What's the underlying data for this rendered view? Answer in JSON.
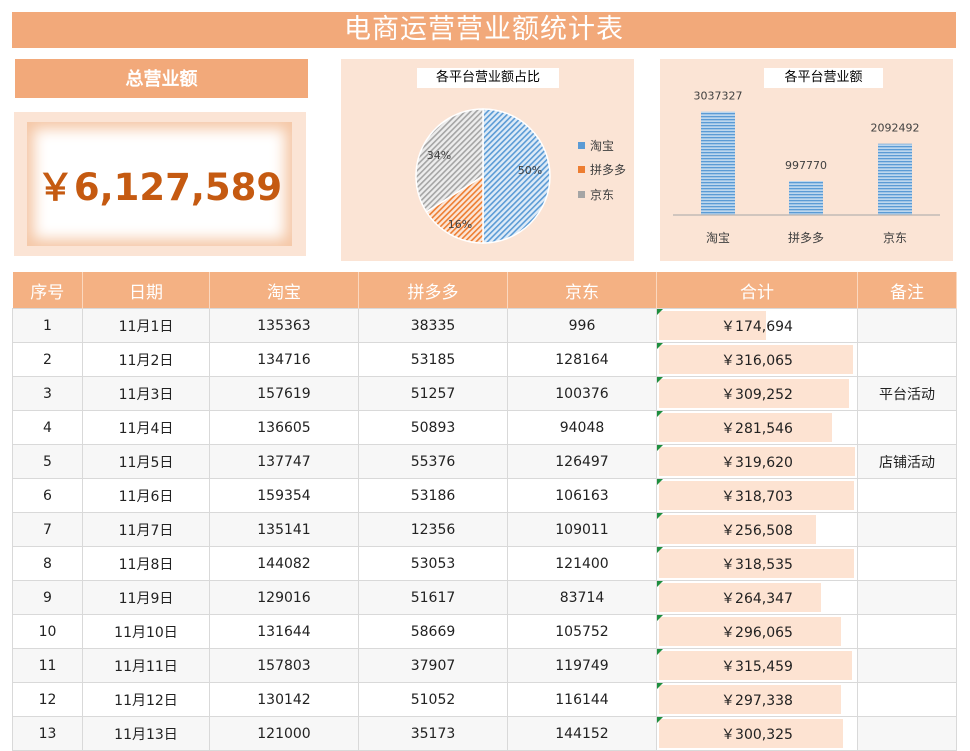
{
  "title": "电商运营营业额统计表",
  "kpi": {
    "label": "总营业额",
    "value": "￥6,127,589"
  },
  "pie_chart": {
    "title": "各平台营业额占比",
    "legend": [
      "淘宝",
      "拼多多",
      "京东"
    ],
    "slice_labels": [
      "50%",
      "16%",
      "34%"
    ]
  },
  "bar_chart": {
    "title": "各平台营业额",
    "value_labels": [
      "3037327",
      "997770",
      "2092492"
    ]
  },
  "chart_data": [
    {
      "type": "pie",
      "title": "各平台营业额占比",
      "categories": [
        "淘宝",
        "拼多多",
        "京东"
      ],
      "values": [
        50,
        16,
        34
      ],
      "colors": [
        "#5b9bd5",
        "#ed7d31",
        "#a5a5a5"
      ],
      "legend": "right"
    },
    {
      "type": "bar",
      "title": "各平台营业额",
      "categories": [
        "淘宝",
        "拼多多",
        "京东"
      ],
      "values": [
        3037327,
        997770,
        2092492
      ],
      "ylim": [
        0,
        3200000
      ],
      "color": "#5b9bd5",
      "grid": false
    }
  ],
  "table": {
    "headers": [
      "序号",
      "日期",
      "淘宝",
      "拼多多",
      "京东",
      "合计",
      "备注"
    ],
    "max_total": 319620,
    "rows": [
      {
        "no": "1",
        "date": "11月1日",
        "tb": "135363",
        "pdd": "38335",
        "jd": "996",
        "total": "￥174,694",
        "total_num": 174694,
        "note": ""
      },
      {
        "no": "2",
        "date": "11月2日",
        "tb": "134716",
        "pdd": "53185",
        "jd": "128164",
        "total": "￥316,065",
        "total_num": 316065,
        "note": ""
      },
      {
        "no": "3",
        "date": "11月3日",
        "tb": "157619",
        "pdd": "51257",
        "jd": "100376",
        "total": "￥309,252",
        "total_num": 309252,
        "note": "平台活动"
      },
      {
        "no": "4",
        "date": "11月4日",
        "tb": "136605",
        "pdd": "50893",
        "jd": "94048",
        "total": "￥281,546",
        "total_num": 281546,
        "note": ""
      },
      {
        "no": "5",
        "date": "11月5日",
        "tb": "137747",
        "pdd": "55376",
        "jd": "126497",
        "total": "￥319,620",
        "total_num": 319620,
        "note": "店铺活动"
      },
      {
        "no": "6",
        "date": "11月6日",
        "tb": "159354",
        "pdd": "53186",
        "jd": "106163",
        "total": "￥318,703",
        "total_num": 318703,
        "note": ""
      },
      {
        "no": "7",
        "date": "11月7日",
        "tb": "135141",
        "pdd": "12356",
        "jd": "109011",
        "total": "￥256,508",
        "total_num": 256508,
        "note": ""
      },
      {
        "no": "8",
        "date": "11月8日",
        "tb": "144082",
        "pdd": "53053",
        "jd": "121400",
        "total": "￥318,535",
        "total_num": 318535,
        "note": ""
      },
      {
        "no": "9",
        "date": "11月9日",
        "tb": "129016",
        "pdd": "51617",
        "jd": "83714",
        "total": "￥264,347",
        "total_num": 264347,
        "note": ""
      },
      {
        "no": "10",
        "date": "11月10日",
        "tb": "131644",
        "pdd": "58669",
        "jd": "105752",
        "total": "￥296,065",
        "total_num": 296065,
        "note": ""
      },
      {
        "no": "11",
        "date": "11月11日",
        "tb": "157803",
        "pdd": "37907",
        "jd": "119749",
        "total": "￥315,459",
        "total_num": 315459,
        "note": ""
      },
      {
        "no": "12",
        "date": "11月12日",
        "tb": "130142",
        "pdd": "51052",
        "jd": "116144",
        "total": "￥297,338",
        "total_num": 297338,
        "note": ""
      },
      {
        "no": "13",
        "date": "11月13日",
        "tb": "121000",
        "pdd": "35173",
        "jd": "144152",
        "total": "￥300,325",
        "total_num": 300325,
        "note": ""
      }
    ]
  }
}
